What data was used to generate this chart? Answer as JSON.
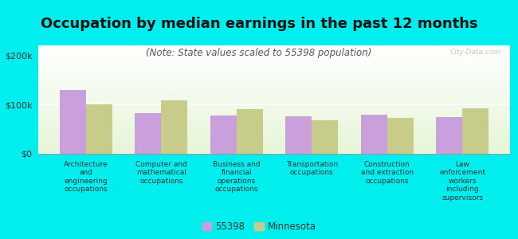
{
  "title": "Occupation by median earnings in the past 12 months",
  "subtitle": "(Note: State values scaled to 55398 population)",
  "categories": [
    "Architecture\nand\nengineering\noccupations",
    "Computer and\nmathematical\noccupations",
    "Business and\nfinancial\noperations\noccupations",
    "Transportation\noccupations",
    "Construction\nand extraction\noccupations",
    "Law\nenforcement\nworkers\nincluding\nsupervisors"
  ],
  "values_55398": [
    130000,
    83000,
    78000,
    76000,
    79000,
    74000
  ],
  "values_minnesota": [
    100000,
    108000,
    90000,
    68000,
    72000,
    92000
  ],
  "ylim": [
    0,
    220000
  ],
  "yticks": [
    0,
    100000,
    200000
  ],
  "ytick_labels": [
    "$0",
    "$100k",
    "$200k"
  ],
  "bar_color_55398": "#c9a0dc",
  "bar_color_minnesota": "#c8cc8a",
  "background_color": "#00eeee",
  "legend_label_55398": "55398",
  "legend_label_minnesota": "Minnesota",
  "watermark": "City-Data.com",
  "title_fontsize": 13,
  "subtitle_fontsize": 8.5,
  "tick_fontsize": 8,
  "bar_width": 0.35
}
